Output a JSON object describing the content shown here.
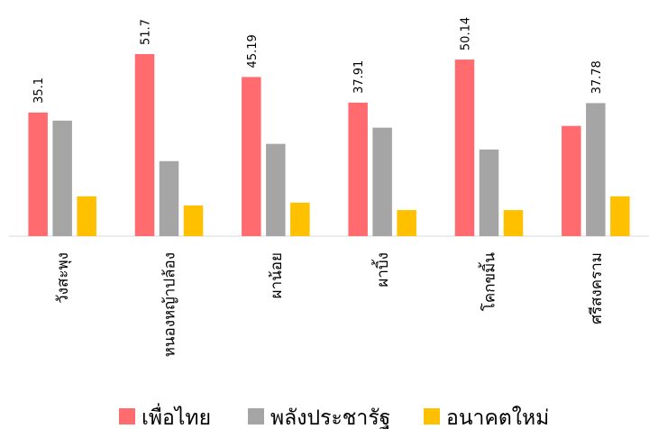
{
  "chart_data": {
    "type": "bar",
    "categories": [
      "วังสะพุง",
      "หนองหญ้าปล้อง",
      "ผาน้อย",
      "ผาบิ้ง",
      "โคกขมิ้น",
      "ศรีสงคราม"
    ],
    "series": [
      {
        "name": "เพื่อไทย",
        "color": "#ff6b6e",
        "values": [
          35.1,
          51.7,
          45.19,
          37.91,
          50.14,
          31.3
        ],
        "value_labels": [
          "35.1",
          "51.7",
          "45.19",
          "37.91",
          "50.14",
          null
        ]
      },
      {
        "name": "พลังประชารัฐ",
        "color": "#a5a5a5",
        "values": [
          32.8,
          21.3,
          26.2,
          30.8,
          24.6,
          37.78
        ],
        "value_labels": [
          null,
          null,
          null,
          null,
          null,
          "37.78"
        ]
      },
      {
        "name": "อนาคตใหม่",
        "color": "#ffc000",
        "values": [
          11.3,
          8.7,
          9.5,
          7.4,
          7.4,
          11.3
        ]
      }
    ],
    "legend": "bottom"
  }
}
